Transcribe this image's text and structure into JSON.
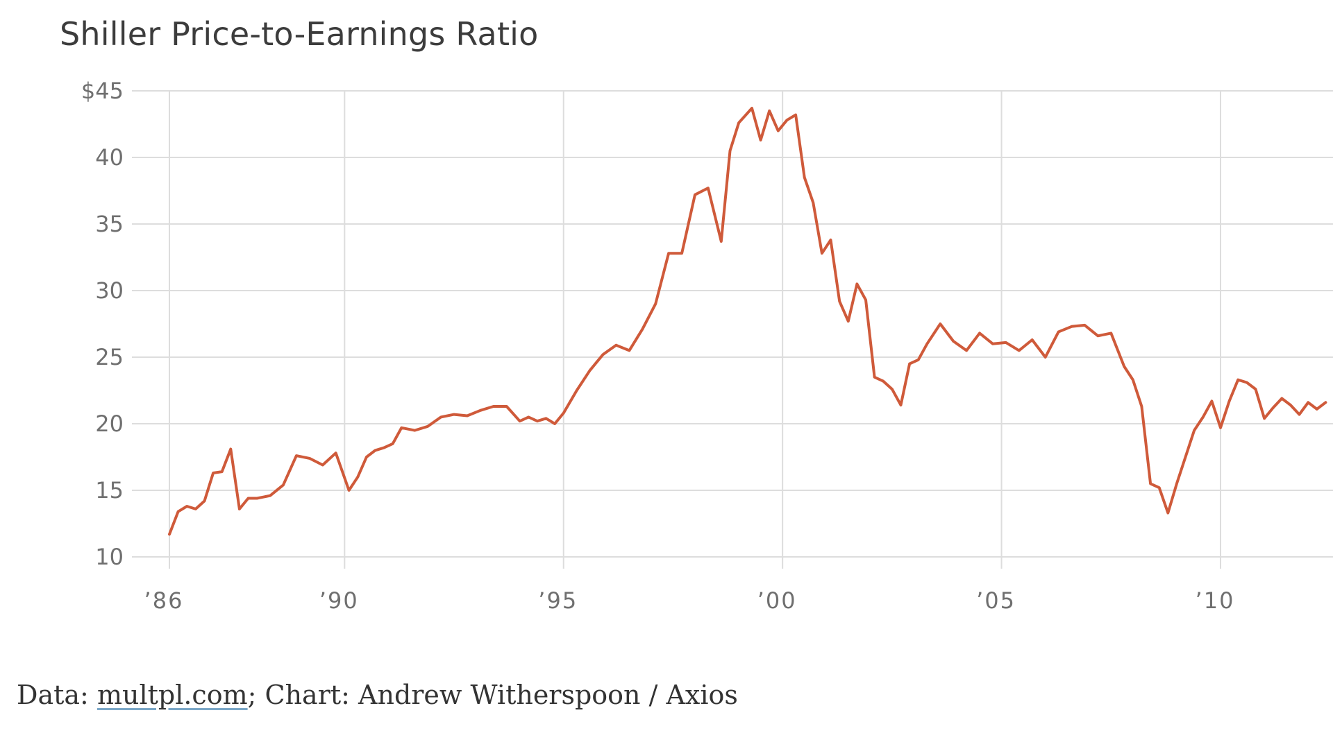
{
  "chart_data": {
    "type": "line",
    "title": "Shiller Price-to-Earnings Ratio",
    "xlabel": "",
    "ylabel": "",
    "ylim": [
      10,
      45
    ],
    "xlim": [
      1986,
      2012.5
    ],
    "yticks": [
      {
        "value": 45,
        "label": "$45"
      },
      {
        "value": 40,
        "label": "40"
      },
      {
        "value": 35,
        "label": "35"
      },
      {
        "value": 30,
        "label": "30"
      },
      {
        "value": 25,
        "label": "25"
      },
      {
        "value": 20,
        "label": "20"
      },
      {
        "value": 15,
        "label": "15"
      },
      {
        "value": 10,
        "label": "10"
      }
    ],
    "xticks": [
      {
        "value": 1986,
        "label": "’86"
      },
      {
        "value": 1990,
        "label": "’90"
      },
      {
        "value": 1995,
        "label": "’95"
      },
      {
        "value": 2000,
        "label": "’00"
      },
      {
        "value": 2005,
        "label": "’05"
      },
      {
        "value": 2010,
        "label": "’10"
      }
    ],
    "grid": true,
    "series": [
      {
        "color": "#cf5a3a",
        "x": [
          1986.0,
          1986.2,
          1986.4,
          1986.6,
          1986.8,
          1987.0,
          1987.2,
          1987.4,
          1987.6,
          1987.8,
          1988.0,
          1988.3,
          1988.6,
          1988.9,
          1989.2,
          1989.5,
          1989.8,
          1990.1,
          1990.3,
          1990.5,
          1990.7,
          1990.9,
          1991.1,
          1991.3,
          1991.6,
          1991.9,
          1992.2,
          1992.5,
          1992.8,
          1993.1,
          1993.4,
          1993.7,
          1994.0,
          1994.2,
          1994.4,
          1994.6,
          1994.8,
          1995.0,
          1995.3,
          1995.6,
          1995.9,
          1996.2,
          1996.5,
          1996.8,
          1997.1,
          1997.4,
          1997.7,
          1998.0,
          1998.3,
          1998.6,
          1998.8,
          1999.0,
          1999.3,
          1999.5,
          1999.7,
          1999.9,
          2000.1,
          2000.3,
          2000.5,
          2000.7,
          2000.9,
          2001.1,
          2001.3,
          2001.5,
          2001.7,
          2001.9,
          2002.1,
          2002.3,
          2002.5,
          2002.7,
          2002.9,
          2003.1,
          2003.3,
          2003.6,
          2003.9,
          2004.2,
          2004.5,
          2004.8,
          2005.1,
          2005.4,
          2005.7,
          2006.0,
          2006.3,
          2006.6,
          2006.9,
          2007.2,
          2007.5,
          2007.8,
          2008.0,
          2008.2,
          2008.4,
          2008.6,
          2008.8,
          2009.0,
          2009.2,
          2009.4,
          2009.6,
          2009.8,
          2010.0,
          2010.2,
          2010.4,
          2010.6,
          2010.8,
          2011.0,
          2011.2,
          2011.4,
          2011.6,
          2011.8,
          2012.0,
          2012.2,
          2012.4
        ],
        "y": [
          11.7,
          13.4,
          13.8,
          13.6,
          14.2,
          16.3,
          16.4,
          18.1,
          13.6,
          14.4,
          14.4,
          14.6,
          15.4,
          17.6,
          17.4,
          16.9,
          17.8,
          15.0,
          16.0,
          17.5,
          18.0,
          18.2,
          18.5,
          19.7,
          19.5,
          19.8,
          20.5,
          20.7,
          20.6,
          21.0,
          21.3,
          21.3,
          20.2,
          20.5,
          20.2,
          20.4,
          20.0,
          20.8,
          22.5,
          24.0,
          25.2,
          25.9,
          25.5,
          27.1,
          29.0,
          32.8,
          32.8,
          37.2,
          37.7,
          33.7,
          40.5,
          42.6,
          43.7,
          41.3,
          43.5,
          42.0,
          42.8,
          43.2,
          38.5,
          36.6,
          32.8,
          33.8,
          29.2,
          27.7,
          30.5,
          29.3,
          23.5,
          23.2,
          22.6,
          21.4,
          24.5,
          24.8,
          26.0,
          27.5,
          26.2,
          25.5,
          26.8,
          26.0,
          26.1,
          25.5,
          26.3,
          25.0,
          26.9,
          27.3,
          27.4,
          26.6,
          26.8,
          24.3,
          23.3,
          21.3,
          15.5,
          15.2,
          13.3,
          15.5,
          17.5,
          19.5,
          20.5,
          21.7,
          19.7,
          21.7,
          23.3,
          23.1,
          22.6,
          20.4,
          21.2,
          21.9,
          21.4,
          20.7,
          21.6,
          21.1,
          21.6
        ]
      }
    ]
  },
  "source": {
    "prefix": "Data: ",
    "link_text": "multpl.com",
    "suffix": "; Chart: Andrew Witherspoon / Axios"
  }
}
